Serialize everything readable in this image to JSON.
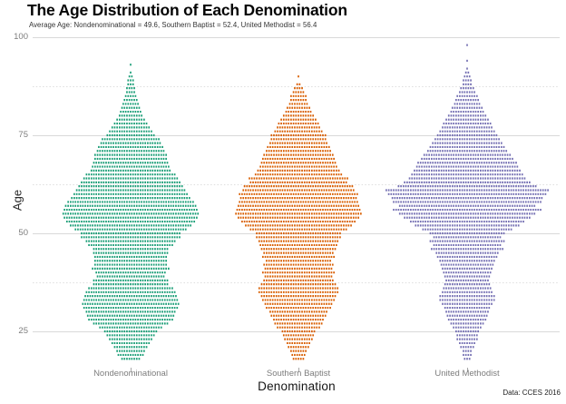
{
  "chart_data": {
    "type": "dot-strip-distribution",
    "title": "The Age Distribution of Each Denomination",
    "subtitle": "Average Age: Nondenominational = 49.6, Southern Baptist = 52.4, United Methodist = 56.4",
    "caption": "Data: CCES 2016",
    "xlabel": "Denomination",
    "ylabel": "Age",
    "ylim": [
      15,
      102
    ],
    "yticks": [
      25,
      50,
      75,
      100
    ],
    "ytick_labels": [
      "100",
      "75",
      "50",
      "25"
    ],
    "minor_gridlines": [
      37.5,
      62.5,
      87.5
    ],
    "grid": "horizontal major solid + minor dotted, no vertical grid",
    "legend": "none",
    "averages": {
      "Nondenominational": 49.6,
      "Southern Baptist": 52.4,
      "United Methodist": 56.4
    },
    "age_start": 18,
    "encoding": "one dashed row per age; row width proportional to number of respondents of that age",
    "series": [
      {
        "name": "Nondenominational",
        "color": "#1B9E77",
        "counts": [
          8,
          11,
          12,
          14,
          16,
          18,
          20,
          22,
          26,
          31,
          35,
          36,
          37,
          39,
          40,
          39,
          38,
          37,
          35,
          31,
          31,
          28,
          29,
          32,
          30,
          30,
          30,
          31,
          31,
          35,
          37,
          41,
          41,
          46,
          50,
          53,
          55,
          56,
          55,
          54,
          52,
          49,
          47,
          45,
          43,
          41,
          39,
          37,
          33,
          32,
          31,
          30,
          30,
          28,
          27,
          25,
          24,
          20,
          18,
          16,
          14,
          12,
          10,
          9,
          8,
          7,
          6,
          5,
          4,
          4,
          3,
          3,
          2,
          1,
          0,
          1
        ]
      },
      {
        "name": "Southern Baptist",
        "color": "#D95F02",
        "counts": [
          5,
          6,
          7,
          9,
          10,
          12,
          13,
          14,
          18,
          20,
          21,
          23,
          24,
          27,
          28,
          30,
          31,
          33,
          33,
          31,
          29,
          28,
          30,
          28,
          29,
          27,
          30,
          29,
          31,
          32,
          33,
          35,
          35,
          40,
          44,
          47,
          50,
          52,
          51,
          50,
          49,
          48,
          49,
          46,
          45,
          40,
          41,
          36,
          34,
          32,
          31,
          30,
          29,
          27,
          26,
          24,
          23,
          23,
          20,
          18,
          17,
          15,
          13,
          11,
          10,
          8,
          7,
          7,
          5,
          4,
          2,
          0,
          1
        ]
      },
      {
        "name": "United Methodist",
        "color": "#7570B3",
        "counts": [
          3,
          4,
          4,
          6,
          7,
          9,
          9,
          10,
          12,
          14,
          16,
          17,
          18,
          19,
          21,
          23,
          23,
          21,
          20,
          19,
          18,
          19,
          20,
          21,
          22,
          23,
          25,
          26,
          30,
          28,
          31,
          28,
          31,
          37,
          43,
          47,
          52,
          56,
          61,
          56,
          61,
          62,
          65,
          67,
          57,
          52,
          48,
          46,
          44,
          42,
          41,
          38,
          36,
          33,
          31,
          29,
          27,
          25,
          23,
          21,
          20,
          18,
          16,
          14,
          13,
          11,
          10,
          9,
          7,
          6,
          4,
          4,
          3,
          2,
          1,
          0,
          1,
          0,
          0,
          0,
          1
        ]
      }
    ]
  }
}
